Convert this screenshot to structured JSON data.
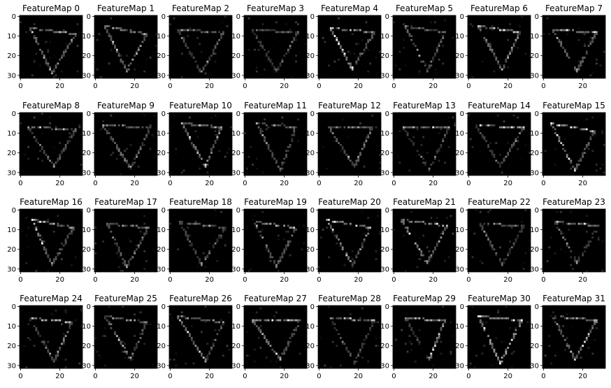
{
  "figure": {
    "type": "image-grid",
    "rows": 4,
    "cols": 8
  },
  "chart_data": {
    "type": "heatmap",
    "colormap": "gray",
    "background": "#000000",
    "image_size": [
      32,
      32
    ],
    "x_ticks": [
      "0",
      "20"
    ],
    "y_ticks": [
      "0",
      "10",
      "20",
      "30"
    ],
    "xlim": [
      0,
      32
    ],
    "ylim": [
      32,
      0
    ],
    "panels": [
      {
        "title": "FeatureMap 0",
        "intensity": 0.55
      },
      {
        "title": "FeatureMap 1",
        "intensity": 0.6
      },
      {
        "title": "FeatureMap 2",
        "intensity": 0.5
      },
      {
        "title": "FeatureMap 3",
        "intensity": 0.45
      },
      {
        "title": "FeatureMap 4",
        "intensity": 0.65
      },
      {
        "title": "FeatureMap 5",
        "intensity": 0.5
      },
      {
        "title": "FeatureMap 6",
        "intensity": 0.6
      },
      {
        "title": "FeatureMap 7",
        "intensity": 0.65
      },
      {
        "title": "FeatureMap 8",
        "intensity": 0.55
      },
      {
        "title": "FeatureMap 9",
        "intensity": 0.5
      },
      {
        "title": "FeatureMap 10",
        "intensity": 0.6
      },
      {
        "title": "FeatureMap 11",
        "intensity": 0.55
      },
      {
        "title": "FeatureMap 12",
        "intensity": 0.6
      },
      {
        "title": "FeatureMap 13",
        "intensity": 0.5
      },
      {
        "title": "FeatureMap 14",
        "intensity": 0.6
      },
      {
        "title": "FeatureMap 15",
        "intensity": 0.7
      },
      {
        "title": "FeatureMap 16",
        "intensity": 0.65
      },
      {
        "title": "FeatureMap 17",
        "intensity": 0.55
      },
      {
        "title": "FeatureMap 18",
        "intensity": 0.55
      },
      {
        "title": "FeatureMap 19",
        "intensity": 0.75
      },
      {
        "title": "FeatureMap 20",
        "intensity": 0.6
      },
      {
        "title": "FeatureMap 21",
        "intensity": 0.65
      },
      {
        "title": "FeatureMap 22",
        "intensity": 0.45
      },
      {
        "title": "FeatureMap 23",
        "intensity": 0.6
      },
      {
        "title": "FeatureMap 24",
        "intensity": 0.7
      },
      {
        "title": "FeatureMap 25",
        "intensity": 0.55
      },
      {
        "title": "FeatureMap 26",
        "intensity": 0.6
      },
      {
        "title": "FeatureMap 27",
        "intensity": 0.7
      },
      {
        "title": "FeatureMap 28",
        "intensity": 0.55
      },
      {
        "title": "FeatureMap 29",
        "intensity": 0.55
      },
      {
        "title": "FeatureMap 30",
        "intensity": 0.7
      },
      {
        "title": "FeatureMap 31",
        "intensity": 0.55
      }
    ]
  }
}
